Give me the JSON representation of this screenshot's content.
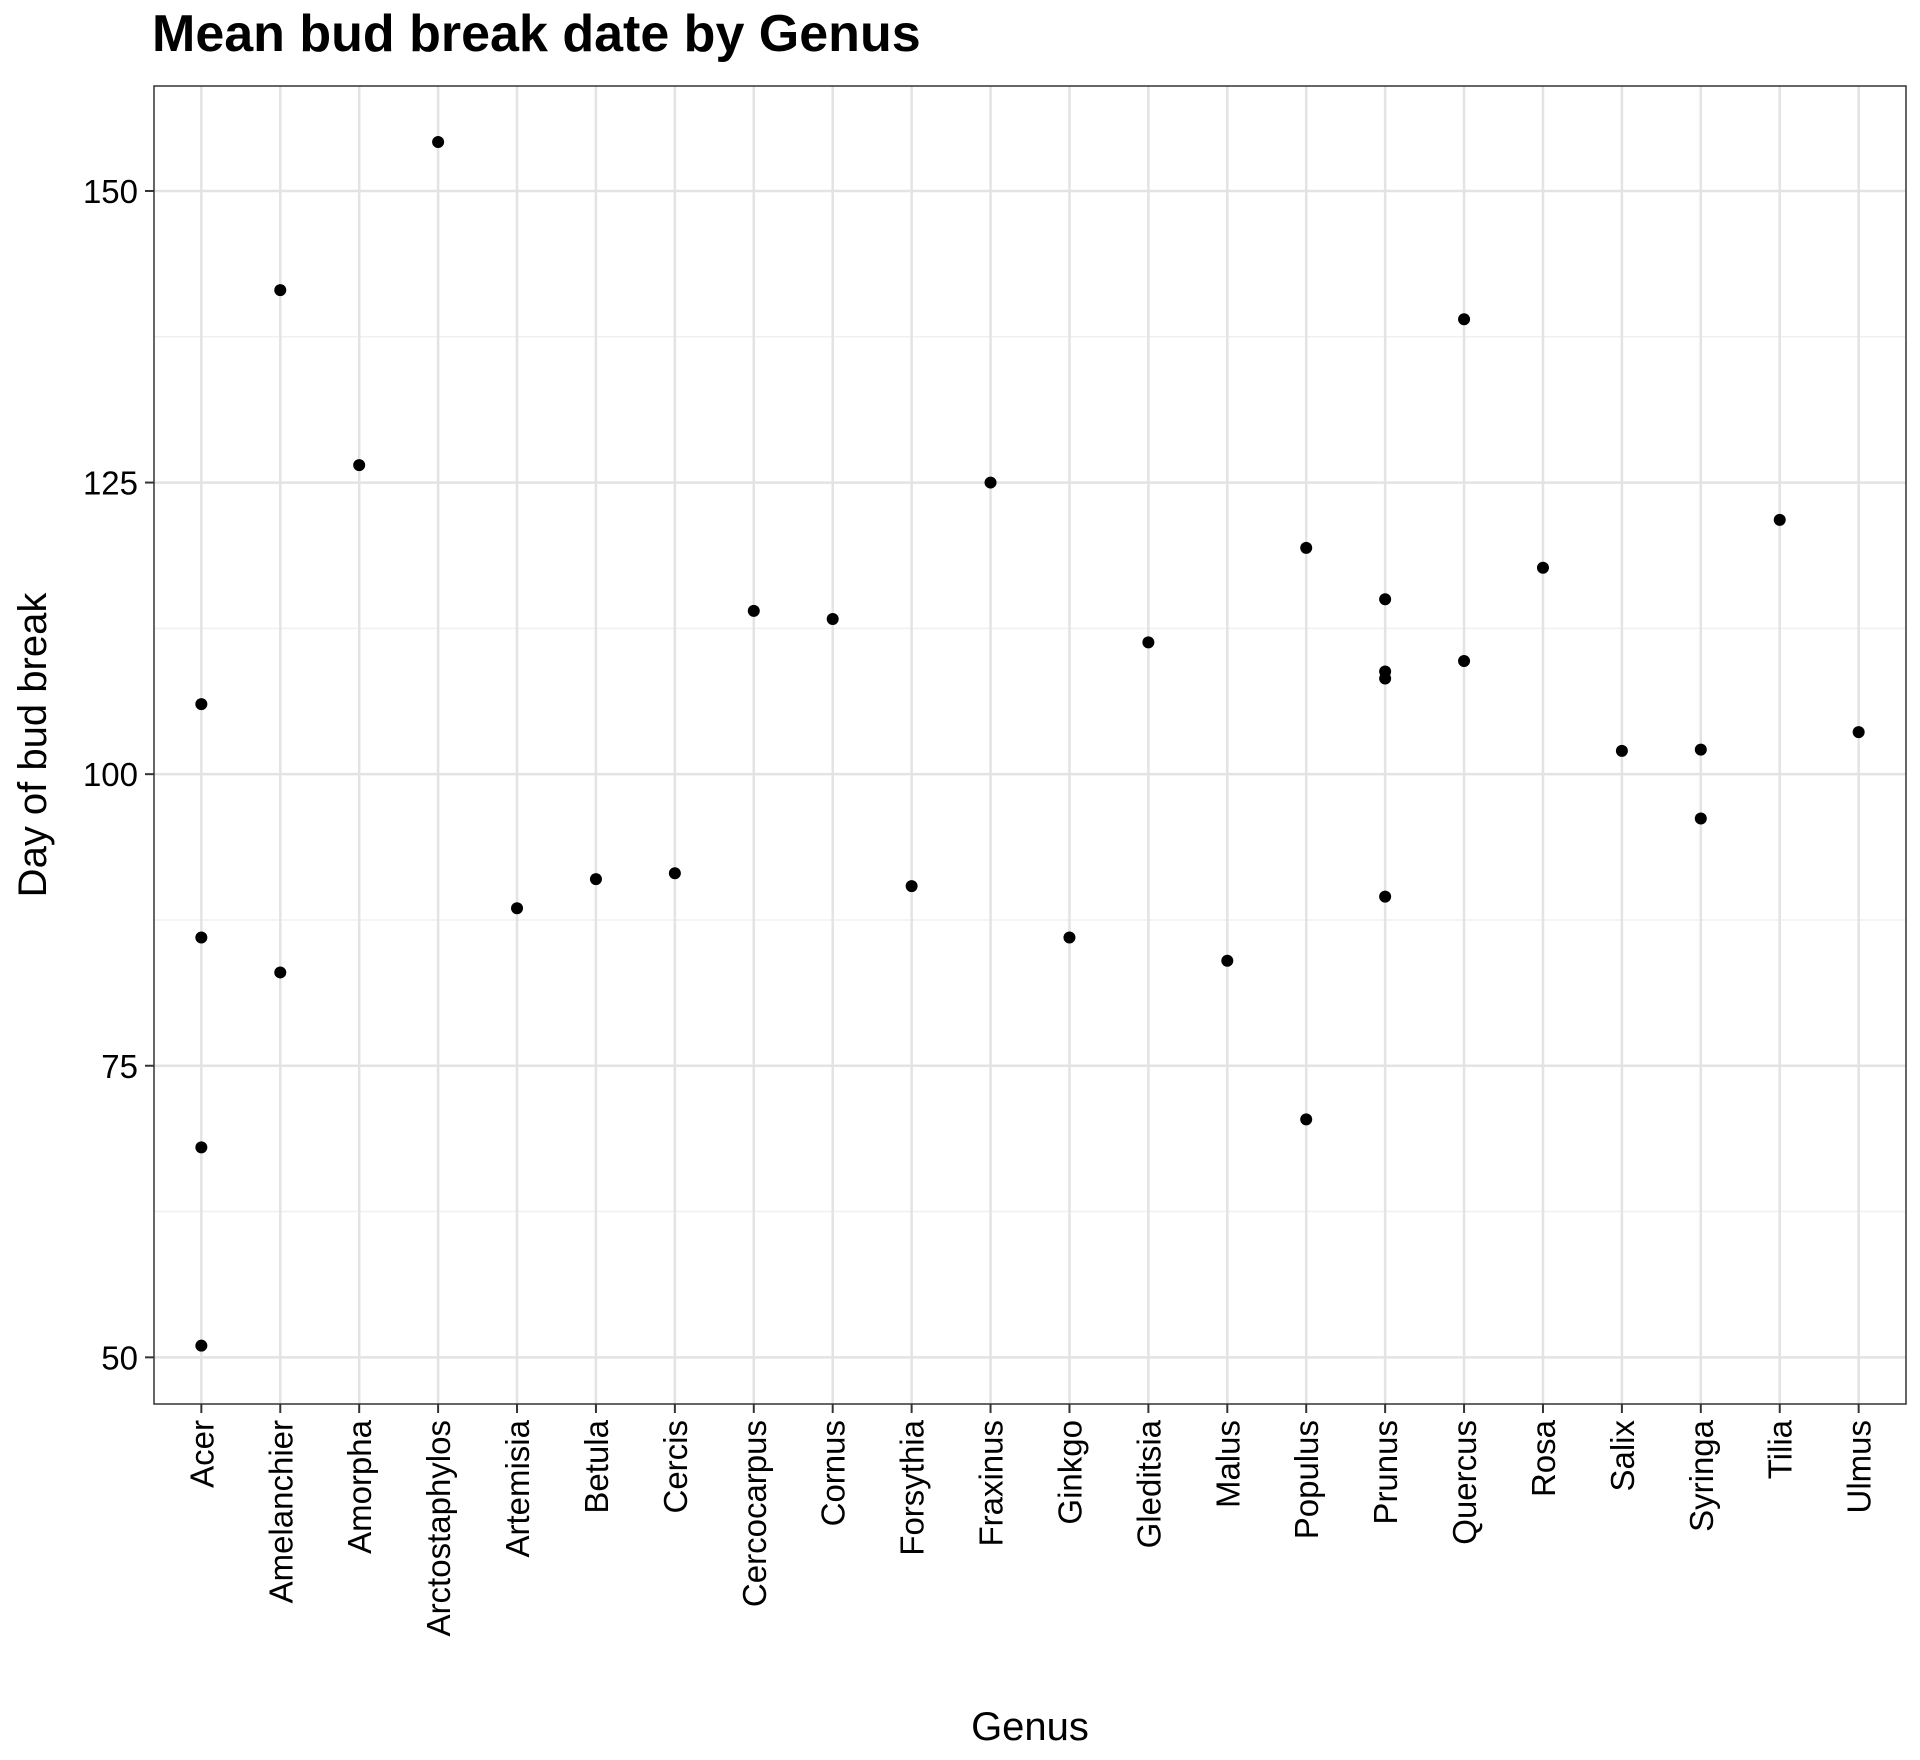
{
  "chart_data": {
    "type": "scatter",
    "title": "Mean bud break date by Genus",
    "xlabel": "Genus",
    "ylabel": "Day of bud break",
    "ylim": [
      46,
      159
    ],
    "yticks": [
      50,
      75,
      100,
      125,
      150
    ],
    "grid": true,
    "categories": [
      "Acer",
      "Amelanchier",
      "Amorpha",
      "Arctostaphylos",
      "Artemisia",
      "Betula",
      "Cercis",
      "Cercocarpus",
      "Cornus",
      "Forsythia",
      "Fraxinus",
      "Ginkgo",
      "Gleditsia",
      "Malus",
      "Populus",
      "Prunus",
      "Quercus",
      "Rosa",
      "Salix",
      "Syringa",
      "Tilia",
      "Ulmus"
    ],
    "points": [
      {
        "x": "Acer",
        "y": 106
      },
      {
        "x": "Acer",
        "y": 86
      },
      {
        "x": "Acer",
        "y": 68
      },
      {
        "x": "Acer",
        "y": 51
      },
      {
        "x": "Amelanchier",
        "y": 141.5
      },
      {
        "x": "Amelanchier",
        "y": 83
      },
      {
        "x": "Amorpha",
        "y": 126.5
      },
      {
        "x": "Arctostaphylos",
        "y": 154.2
      },
      {
        "x": "Artemisia",
        "y": 88.5
      },
      {
        "x": "Betula",
        "y": 91
      },
      {
        "x": "Cercis",
        "y": 91.5
      },
      {
        "x": "Cercocarpus",
        "y": 114
      },
      {
        "x": "Cornus",
        "y": 113.3
      },
      {
        "x": "Forsythia",
        "y": 90.4
      },
      {
        "x": "Fraxinus",
        "y": 125
      },
      {
        "x": "Ginkgo",
        "y": 86
      },
      {
        "x": "Gleditsia",
        "y": 111.3
      },
      {
        "x": "Malus",
        "y": 84
      },
      {
        "x": "Populus",
        "y": 119.4
      },
      {
        "x": "Populus",
        "y": 70.4
      },
      {
        "x": "Prunus",
        "y": 115
      },
      {
        "x": "Prunus",
        "y": 108.8
      },
      {
        "x": "Prunus",
        "y": 108.2
      },
      {
        "x": "Prunus",
        "y": 89.5
      },
      {
        "x": "Quercus",
        "y": 139
      },
      {
        "x": "Quercus",
        "y": 109.7
      },
      {
        "x": "Rosa",
        "y": 117.7
      },
      {
        "x": "Salix",
        "y": 102
      },
      {
        "x": "Syringa",
        "y": 102.1
      },
      {
        "x": "Syringa",
        "y": 96.2
      },
      {
        "x": "Tilia",
        "y": 121.8
      },
      {
        "x": "Ulmus",
        "y": 103.6
      }
    ]
  }
}
